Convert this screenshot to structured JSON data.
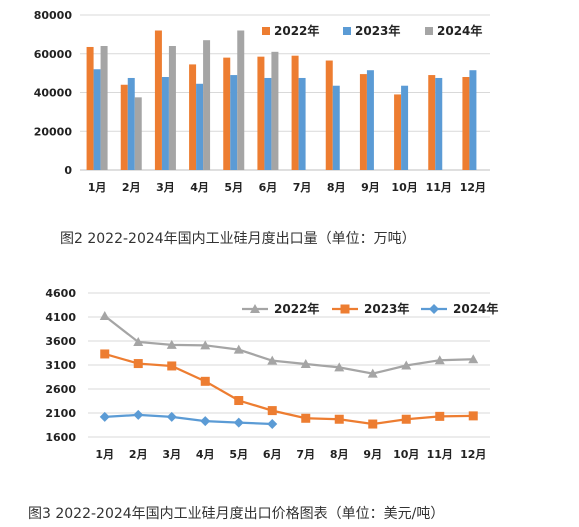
{
  "captions": {
    "chart1": "图2 2022-2024年国内工业硅月度出口量（单位：万吨）",
    "chart2": "图3 2022-2024年国内工业硅月度出口价格图表（单位：美元/吨）"
  },
  "chart_data": [
    {
      "type": "bar",
      "categories": [
        "1月",
        "2月",
        "3月",
        "4月",
        "5月",
        "6月",
        "7月",
        "8月",
        "9月",
        "10月",
        "11月",
        "12月"
      ],
      "ylim": [
        0,
        80000
      ],
      "yticks": [
        0,
        20000,
        40000,
        60000,
        80000
      ],
      "grid": true,
      "legend_position": "top-right",
      "series": [
        {
          "name": "2022年",
          "color": "#ED7D31",
          "values": [
            63500,
            44000,
            72000,
            54500,
            58000,
            58500,
            59000,
            56500,
            49500,
            39000,
            49000,
            48000
          ]
        },
        {
          "name": "2023年",
          "color": "#5B9BD5",
          "values": [
            52000,
            47500,
            48000,
            44500,
            49000,
            47500,
            47500,
            43500,
            51500,
            43500,
            47500,
            51500
          ]
        },
        {
          "name": "2024年",
          "color": "#A5A5A5",
          "values": [
            64000,
            37500,
            64000,
            67000,
            72000,
            61000,
            null,
            null,
            null,
            null,
            null,
            null
          ]
        }
      ]
    },
    {
      "type": "line",
      "categories": [
        "1月",
        "2月",
        "3月",
        "4月",
        "5月",
        "6月",
        "7月",
        "8月",
        "9月",
        "10月",
        "11月",
        "12月"
      ],
      "ylim": [
        1600,
        4600
      ],
      "yticks": [
        1600,
        2100,
        2600,
        3100,
        3600,
        4100,
        4600
      ],
      "grid": true,
      "legend_position": "top-right",
      "series": [
        {
          "name": "2022年",
          "color": "#A5A5A5",
          "marker": "triangle",
          "values": [
            4120,
            3580,
            3520,
            3510,
            3420,
            3190,
            3120,
            3050,
            2920,
            3090,
            3200,
            3220
          ]
        },
        {
          "name": "2023年",
          "color": "#ED7D31",
          "marker": "square",
          "values": [
            3330,
            3130,
            3080,
            2760,
            2360,
            2150,
            1990,
            1970,
            1870,
            1970,
            2030,
            2040
          ]
        },
        {
          "name": "2024年",
          "color": "#5B9BD5",
          "marker": "diamond",
          "values": [
            2020,
            2060,
            2020,
            1930,
            1900,
            1870,
            null,
            null,
            null,
            null,
            null,
            null
          ]
        }
      ]
    }
  ]
}
